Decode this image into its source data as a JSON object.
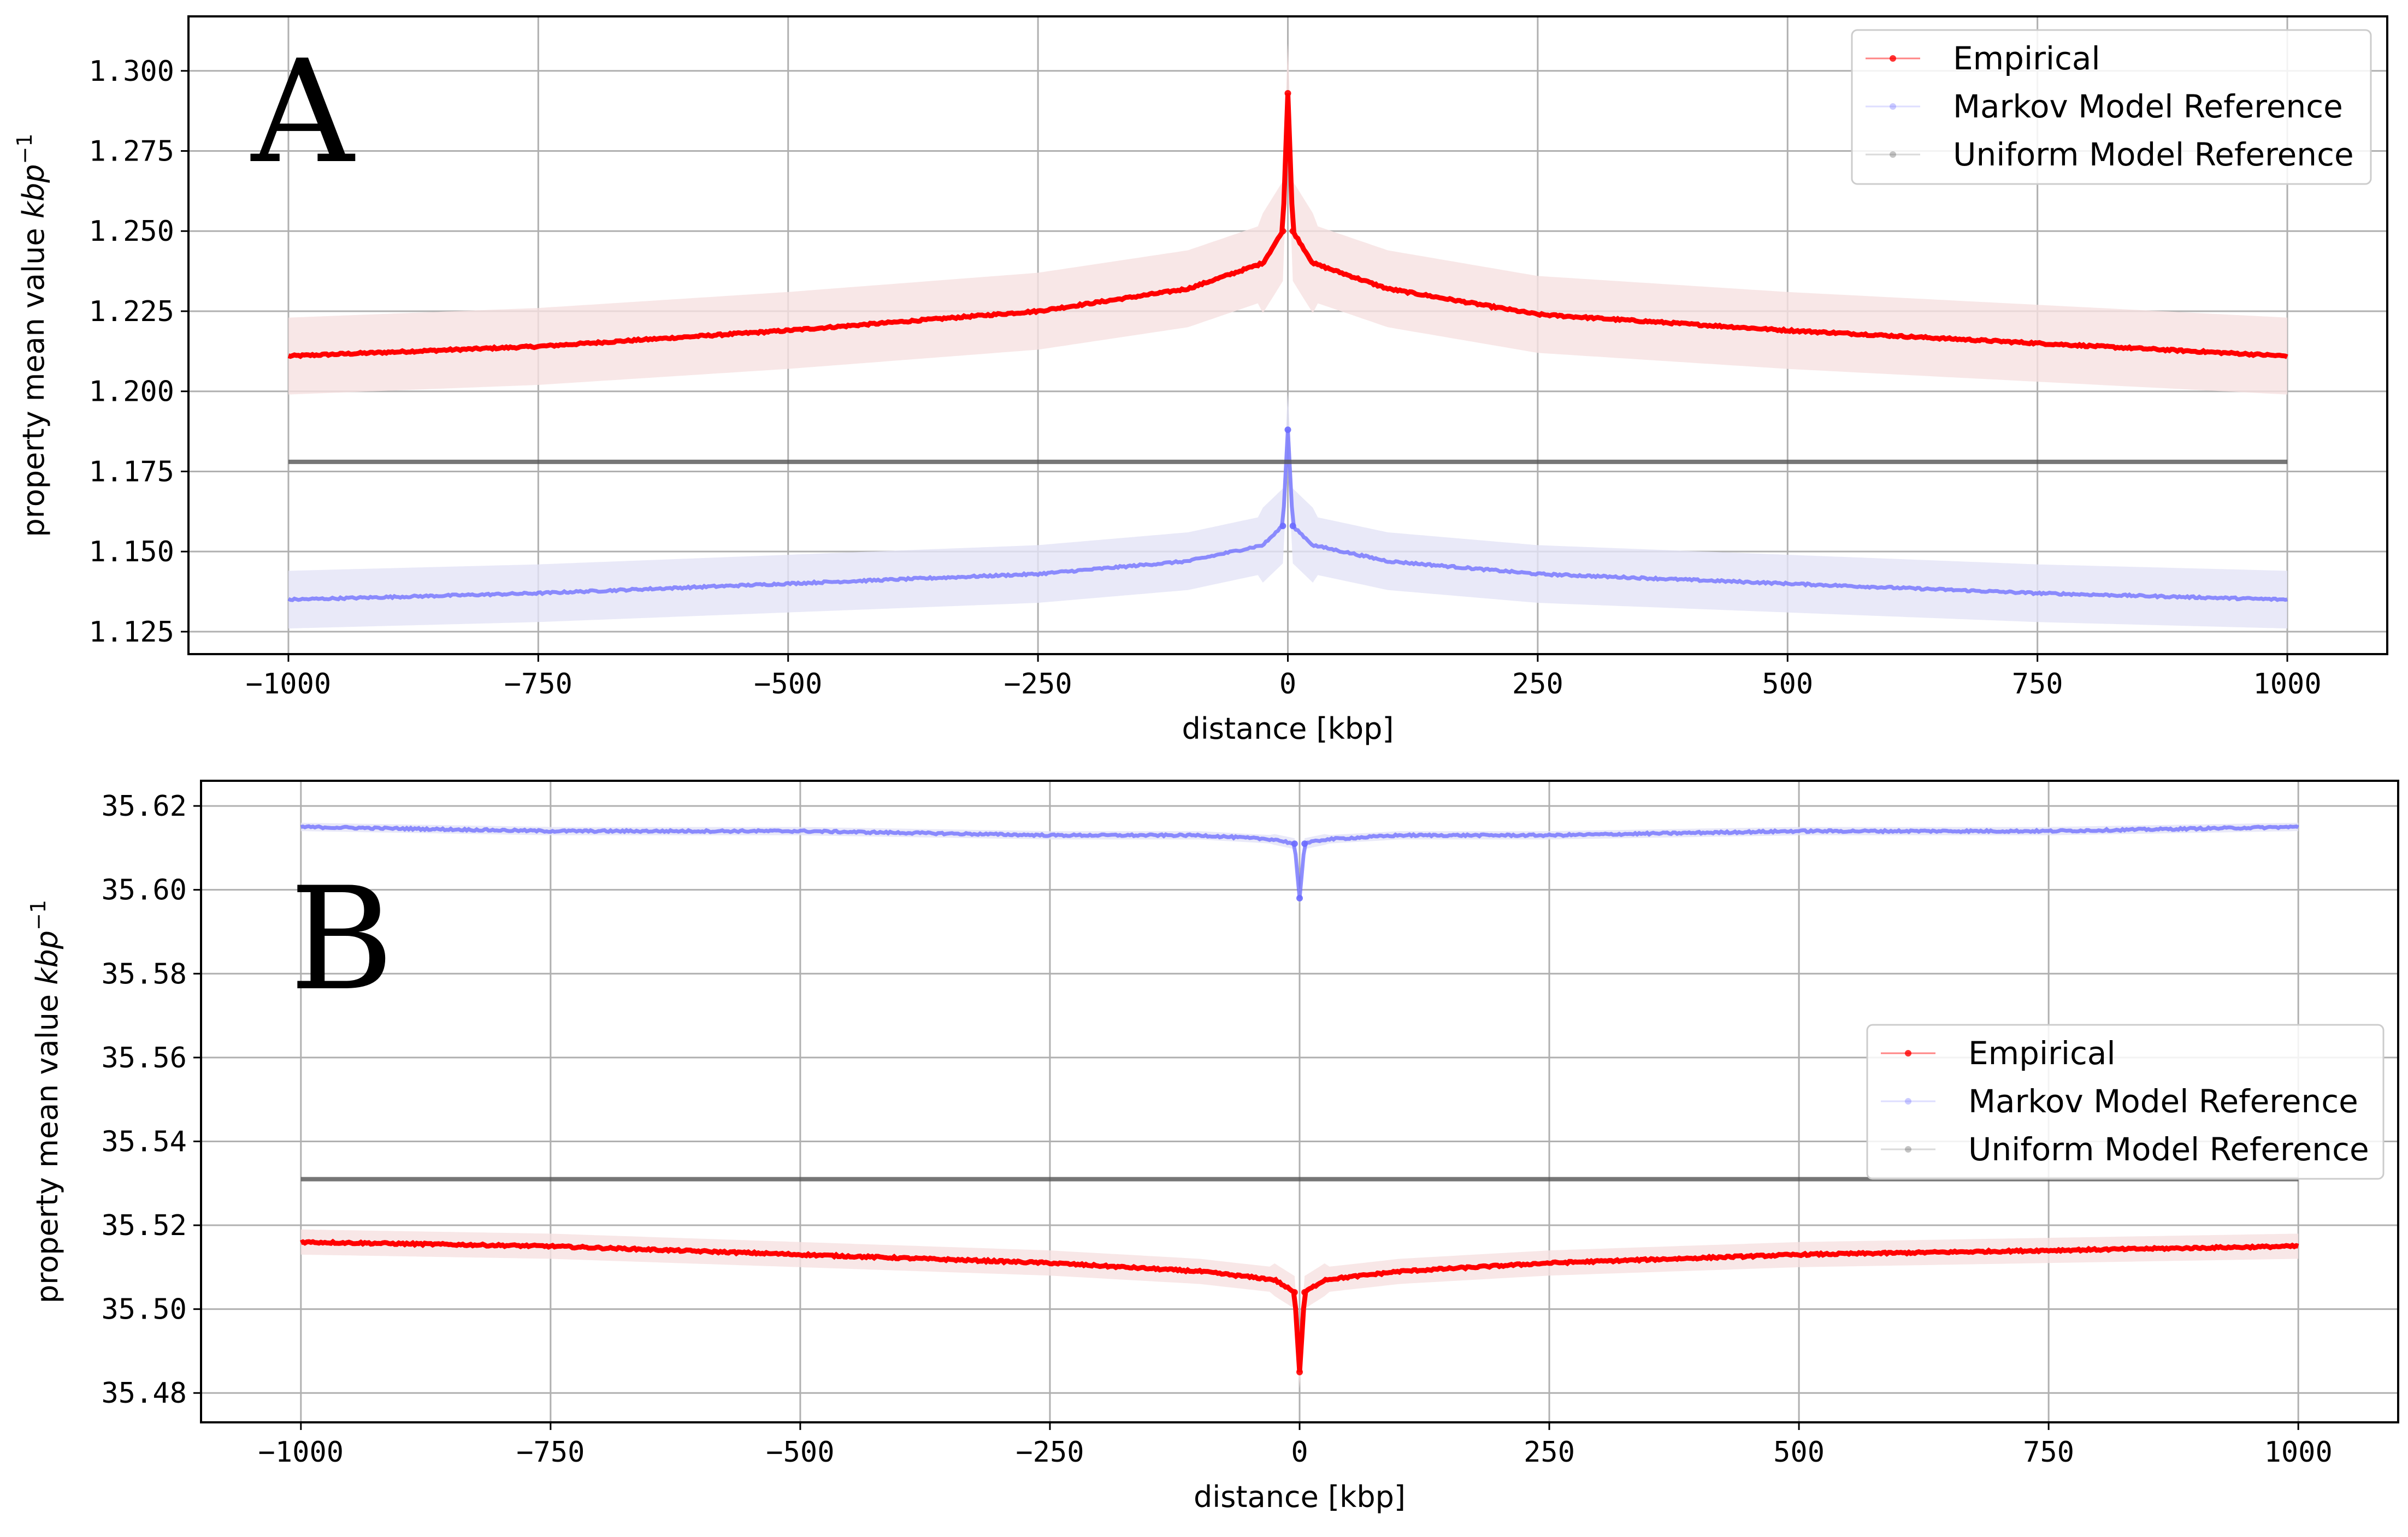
{
  "colors": {
    "empirical": "#ff0000",
    "markov": "#6a6aff",
    "uniform": "#555555",
    "band_empirical": "#f6e1e1",
    "band_markov": "#e4e4f6"
  },
  "chart_data": [
    {
      "type": "line",
      "panel_label": "A",
      "xlabel": "distance [kbp]",
      "ylabel_main": "property mean value ",
      "ylabel_unit": "kbp",
      "ylabel_exp": "−1",
      "xlim": [
        -1100,
        1100
      ],
      "ylim": [
        1.118,
        1.317
      ],
      "xticks": [
        -1000,
        -750,
        -500,
        -250,
        0,
        250,
        500,
        750,
        1000
      ],
      "xtick_labels": [
        "−1000",
        "−750",
        "−500",
        "−250",
        "0",
        "250",
        "500",
        "750",
        "1000"
      ],
      "yticks": [
        1.125,
        1.15,
        1.175,
        1.2,
        1.225,
        1.25,
        1.275,
        1.3
      ],
      "ytick_labels": [
        "1.125",
        "1.150",
        "1.175",
        "1.200",
        "1.225",
        "1.250",
        "1.275",
        "1.300"
      ],
      "grid": true,
      "legend_position": "top-right",
      "legend": [
        "Empirical",
        "Markov Model Reference",
        "Uniform Model Reference"
      ],
      "series": [
        {
          "name": "Empirical",
          "x": [
            -1000,
            -750,
            -500,
            -250,
            -100,
            -25,
            -5,
            0,
            5,
            25,
            100,
            250,
            500,
            750,
            1000
          ],
          "y": [
            1.211,
            1.214,
            1.219,
            1.225,
            1.232,
            1.24,
            1.25,
            1.293,
            1.25,
            1.24,
            1.232,
            1.224,
            1.219,
            1.215,
            1.211
          ],
          "band": 0.012
        },
        {
          "name": "Markov Model Reference",
          "x": [
            -1000,
            -750,
            -500,
            -250,
            -100,
            -25,
            -5,
            0,
            5,
            25,
            100,
            250,
            500,
            750,
            1000
          ],
          "y": [
            1.135,
            1.137,
            1.14,
            1.143,
            1.147,
            1.152,
            1.158,
            1.188,
            1.158,
            1.152,
            1.147,
            1.143,
            1.14,
            1.137,
            1.135
          ],
          "band": 0.009
        },
        {
          "name": "Uniform Model Reference",
          "x": [
            -1000,
            1000
          ],
          "y": [
            1.178,
            1.178
          ]
        }
      ]
    },
    {
      "type": "line",
      "panel_label": "B",
      "xlabel": "distance [kbp]",
      "ylabel_main": "property mean value ",
      "ylabel_unit": "kbp",
      "ylabel_exp": "−1",
      "xlim": [
        -1100,
        1100
      ],
      "ylim": [
        35.473,
        35.626
      ],
      "xticks": [
        -1000,
        -750,
        -500,
        -250,
        0,
        250,
        500,
        750,
        1000
      ],
      "xtick_labels": [
        "−1000",
        "−750",
        "−500",
        "−250",
        "0",
        "250",
        "500",
        "750",
        "1000"
      ],
      "yticks": [
        35.48,
        35.5,
        35.52,
        35.54,
        35.56,
        35.58,
        35.6,
        35.62
      ],
      "ytick_labels": [
        "35.48",
        "35.50",
        "35.52",
        "35.54",
        "35.56",
        "35.58",
        "35.60",
        "35.62"
      ],
      "grid": true,
      "legend_position": "center-right",
      "legend": [
        "Empirical",
        "Markov Model Reference",
        "Uniform Model Reference"
      ],
      "series": [
        {
          "name": "Empirical",
          "x": [
            -1000,
            -750,
            -500,
            -250,
            -100,
            -25,
            -5,
            0,
            5,
            25,
            100,
            250,
            500,
            750,
            1000
          ],
          "y": [
            35.516,
            35.515,
            35.513,
            35.511,
            35.509,
            35.507,
            35.504,
            35.485,
            35.504,
            35.507,
            35.509,
            35.511,
            35.513,
            35.514,
            35.515
          ],
          "band": 0.003
        },
        {
          "name": "Markov Model Reference",
          "x": [
            -1000,
            -750,
            -500,
            -250,
            -100,
            -25,
            -5,
            0,
            5,
            25,
            100,
            250,
            500,
            750,
            1000
          ],
          "y": [
            35.615,
            35.614,
            35.614,
            35.613,
            35.613,
            35.612,
            35.611,
            35.598,
            35.611,
            35.612,
            35.613,
            35.613,
            35.614,
            35.614,
            35.615
          ],
          "band": 0.001
        },
        {
          "name": "Uniform Model Reference",
          "x": [
            -1000,
            1000
          ],
          "y": [
            35.531,
            35.531
          ]
        }
      ]
    }
  ]
}
